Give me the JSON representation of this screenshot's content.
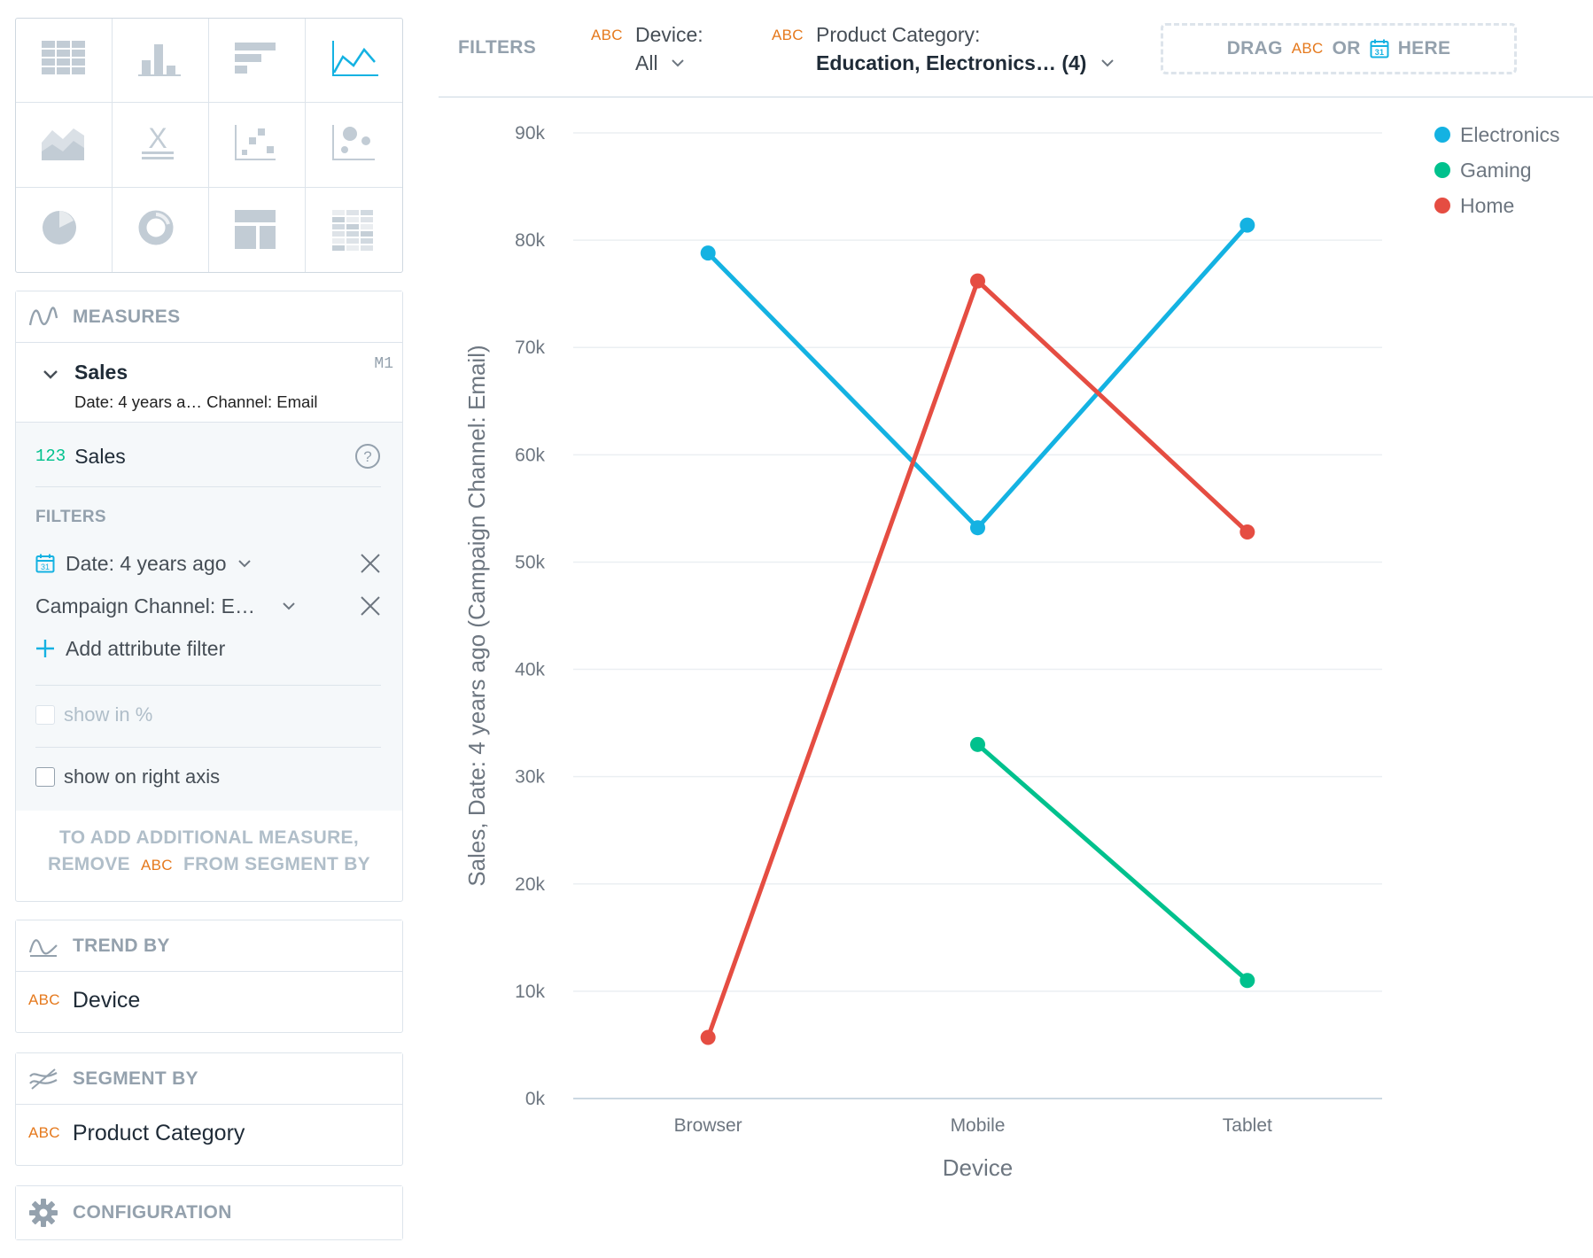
{
  "viz_types": [
    {
      "name": "table",
      "icon": "table-icon",
      "active": false
    },
    {
      "name": "column",
      "icon": "column-chart-icon",
      "active": false
    },
    {
      "name": "bar",
      "icon": "bar-chart-icon",
      "active": false
    },
    {
      "name": "line",
      "icon": "line-chart-icon",
      "active": true
    },
    {
      "name": "area",
      "icon": "area-chart-icon",
      "active": false
    },
    {
      "name": "headline",
      "icon": "headline-icon",
      "active": false
    },
    {
      "name": "scatter",
      "icon": "scatter-plot-icon",
      "active": false
    },
    {
      "name": "bubble",
      "icon": "bubble-chart-icon",
      "active": false
    },
    {
      "name": "pie",
      "icon": "pie-chart-icon",
      "active": false
    },
    {
      "name": "donut",
      "icon": "donut-chart-icon",
      "active": false
    },
    {
      "name": "treemap",
      "icon": "treemap-icon",
      "active": false
    },
    {
      "name": "heatmap",
      "icon": "heatmap-icon",
      "active": false
    }
  ],
  "measures": {
    "header": "MEASURES",
    "item": {
      "name": "Sales",
      "subtitle": "Date: 4 years a… Channel: Email",
      "id": "M1"
    },
    "detail": {
      "type_badge": "123",
      "metric": "Sales",
      "filters_label": "FILTERS",
      "filters": [
        {
          "label": "Date: 4 years ago"
        },
        {
          "label": "Campaign Channel: E…"
        }
      ],
      "add_filter": "Add attribute filter",
      "show_in_percent": "show in %",
      "show_on_right_axis": "show on right axis"
    },
    "note_line1": "TO ADD ADDITIONAL MEASURE,",
    "note_line2_a": "REMOVE",
    "note_line2_b": "FROM SEGMENT BY"
  },
  "trend_by": {
    "header": "TREND BY",
    "badge": "ABC",
    "item": "Device"
  },
  "segment_by": {
    "header": "SEGMENT BY",
    "badge": "ABC",
    "item": "Product Category"
  },
  "configuration": {
    "header": "CONFIGURATION"
  },
  "filter_bar": {
    "label": "FILTERS",
    "filters": [
      {
        "badge": "ABC",
        "title": "Device:",
        "value": "All"
      },
      {
        "badge": "ABC",
        "title": "Product Category:",
        "value": "Education, Electronics… (4)"
      }
    ],
    "drag_text_1": "DRAG",
    "drag_badge": "ABC",
    "drag_text_2": "OR",
    "drag_text_3": "HERE"
  },
  "chart_data": {
    "type": "line",
    "categories": [
      "Browser",
      "Mobile",
      "Tablet"
    ],
    "xlabel": "Device",
    "ylabel": "Sales, Date: 4 years ago (Campaign Channel: Email)",
    "ylim": [
      0,
      90000
    ],
    "yticks": [
      "0k",
      "10k",
      "20k",
      "30k",
      "40k",
      "50k",
      "60k",
      "70k",
      "80k",
      "90k"
    ],
    "legend_position": "top-right",
    "grid": true,
    "series": [
      {
        "name": "Electronics",
        "color": "#14b2e2",
        "values": [
          78800,
          53200,
          81400
        ]
      },
      {
        "name": "Gaming",
        "color": "#00c18d",
        "values": [
          null,
          33000,
          11000
        ]
      },
      {
        "name": "Home",
        "color": "#e54d42",
        "values": [
          5700,
          76200,
          52800
        ]
      }
    ]
  }
}
